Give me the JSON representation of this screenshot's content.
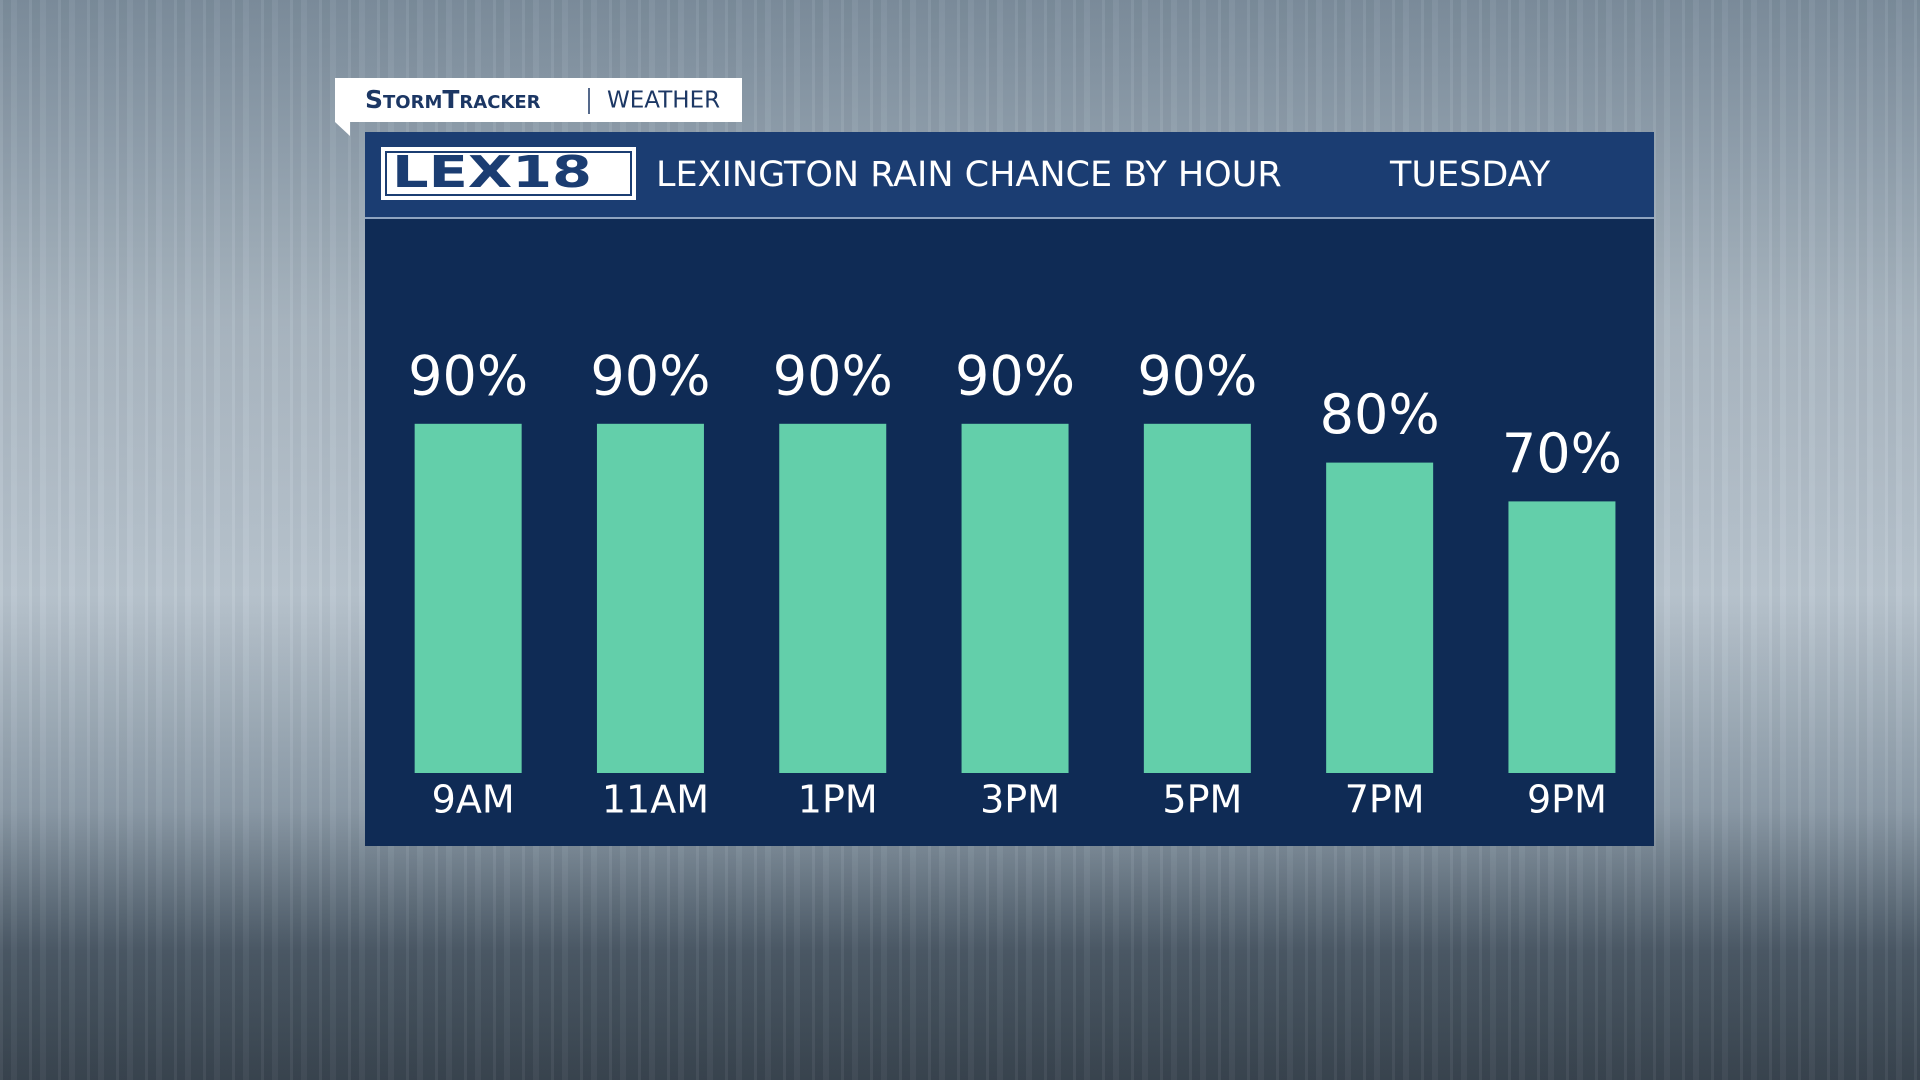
{
  "header": {
    "brand": "StormTracker",
    "section": "WEATHER",
    "logo": "LEX18"
  },
  "chart_data": {
    "type": "bar",
    "title": "LEXINGTON RAIN CHANCE BY HOUR",
    "subtitle": "TUESDAY",
    "categories": [
      "9AM",
      "11AM",
      "1PM",
      "3PM",
      "5PM",
      "7PM",
      "9PM"
    ],
    "values": [
      90,
      90,
      90,
      90,
      90,
      80,
      70
    ],
    "value_labels": [
      "90%",
      "90%",
      "90%",
      "90%",
      "90%",
      "80%",
      "70%"
    ],
    "color": "#63cfaa",
    "ylim": [
      0,
      100
    ]
  }
}
